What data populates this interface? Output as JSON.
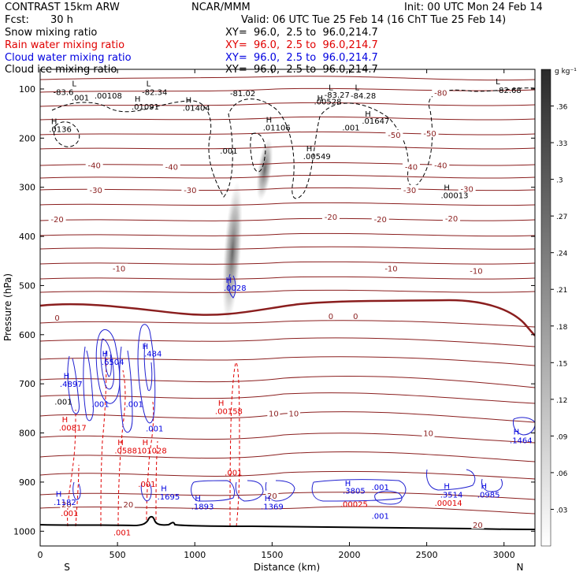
{
  "header": {
    "title": "CONTRAST 15km ARW",
    "center": "NCAR/MMM",
    "init": "Init: 00 UTC Mon 24 Feb 14",
    "fcst_label": "Fcst:",
    "fcst_value": "30 h",
    "valid": "Valid: 06 UTC Tue 25 Feb 14 (16 ChT Tue 25 Feb 14)"
  },
  "fields": [
    {
      "name": "Snow mixing ratio",
      "xy": "XY=  96.0,  2.5 to  96.0,214.7",
      "color": "#000000"
    },
    {
      "name": "Rain water mixing ratio",
      "xy": "XY=  96.0,  2.5 to  96.0,214.7",
      "color": "#e00000"
    },
    {
      "name": "Cloud water mixing ratio",
      "xy": "XY=  96.0,  2.5 to  96.0,214.7",
      "color": "#0000e0"
    },
    {
      "name": "Cloud ice mixing ratio",
      "xy": "XY=  96.0,  2.5 to  96.0,214.7",
      "color": "#000000"
    }
  ],
  "chart_data": {
    "type": "cross-section",
    "xlabel": "Distance (km)",
    "ylabel": "Pressure (hPa)",
    "xlim": [
      0,
      3200
    ],
    "ylim": [
      1030,
      60
    ],
    "xticks": [
      0,
      500,
      1000,
      1500,
      2000,
      2500,
      3000
    ],
    "yticks": [
      100,
      200,
      300,
      400,
      500,
      600,
      700,
      800,
      900,
      1000
    ],
    "end_labels": {
      "left": "S",
      "right": "N"
    },
    "colorbar": {
      "unit": "g kg⁻¹",
      "ticks": [
        ".36",
        ".33",
        ".3",
        ".27",
        ".24",
        ".21",
        ".18",
        ".15",
        ".12",
        ".09",
        ".06",
        ".03"
      ],
      "min": 0.0,
      "max": 0.39
    },
    "temperature_contours": [
      {
        "label": "-80",
        "x": 2590,
        "p": 107
      },
      {
        "label": "-50",
        "x": 2290,
        "p": 193
      },
      {
        "label": "-50",
        "x": 2520,
        "p": 190
      },
      {
        "label": "-40",
        "x": 350,
        "p": 255
      },
      {
        "label": "-40",
        "x": 850,
        "p": 258
      },
      {
        "label": "-40",
        "x": 2400,
        "p": 258
      },
      {
        "label": "-40",
        "x": 2590,
        "p": 255
      },
      {
        "label": "-30",
        "x": 360,
        "p": 305
      },
      {
        "label": "-30",
        "x": 970,
        "p": 305
      },
      {
        "label": "-30",
        "x": 2390,
        "p": 305
      },
      {
        "label": "-30",
        "x": 2760,
        "p": 303
      },
      {
        "label": "-20",
        "x": 110,
        "p": 365
      },
      {
        "label": "-20",
        "x": 1880,
        "p": 360
      },
      {
        "label": "-20",
        "x": 2200,
        "p": 365
      },
      {
        "label": "-20",
        "x": 2660,
        "p": 363
      },
      {
        "label": "-10",
        "x": 510,
        "p": 465
      },
      {
        "label": "-10",
        "x": 2270,
        "p": 465
      },
      {
        "label": "-10",
        "x": 2820,
        "p": 470
      },
      {
        "label": "0",
        "x": 110,
        "p": 565
      },
      {
        "label": "0",
        "x": 1880,
        "p": 562
      },
      {
        "label": "0",
        "x": 2040,
        "p": 562
      },
      {
        "label": "10",
        "x": 1510,
        "p": 760
      },
      {
        "label": "10",
        "x": 1640,
        "p": 760
      },
      {
        "label": "10",
        "x": 2510,
        "p": 800
      },
      {
        "label": "20",
        "x": 170,
        "p": 945
      },
      {
        "label": "20",
        "x": 570,
        "p": 945
      },
      {
        "label": "20",
        "x": 1500,
        "p": 927
      },
      {
        "label": "20",
        "x": 2830,
        "p": 987
      }
    ],
    "annotations": [
      {
        "text": "L",
        "x": 220,
        "p": 88,
        "color": "black"
      },
      {
        "text": "-83.6",
        "x": 150,
        "p": 106,
        "color": "black"
      },
      {
        "text": "L",
        "x": 700,
        "p": 88,
        "color": "black"
      },
      {
        "text": "-82.34",
        "x": 740,
        "p": 106,
        "color": "black"
      },
      {
        "text": "-81.02",
        "x": 1310,
        "p": 108,
        "color": "black"
      },
      {
        "text": "L",
        "x": 1880,
        "p": 96,
        "color": "black"
      },
      {
        "text": "-83.27",
        "x": 1920,
        "p": 111,
        "color": "black"
      },
      {
        "text": "L",
        "x": 2050,
        "p": 96,
        "color": "black"
      },
      {
        "text": "-84.28",
        "x": 2090,
        "p": 113,
        "color": "black"
      },
      {
        "text": "L",
        "x": 2960,
        "p": 84,
        "color": "black"
      },
      {
        "text": "-82.68",
        "x": 3030,
        "p": 102,
        "color": "black"
      },
      {
        "text": ".001",
        "x": 260,
        "p": 117,
        "color": "black"
      },
      {
        "text": ".00108",
        "x": 440,
        "p": 113,
        "color": "black"
      },
      {
        "text": "H",
        "x": 630,
        "p": 119,
        "color": "black"
      },
      {
        "text": ".01091",
        "x": 680,
        "p": 135,
        "color": "black"
      },
      {
        "text": "H",
        "x": 960,
        "p": 122,
        "color": "black"
      },
      {
        "text": ".01404",
        "x": 1010,
        "p": 138,
        "color": "black"
      },
      {
        "text": "H",
        "x": 1810,
        "p": 118,
        "color": "black"
      },
      {
        "text": ".00528",
        "x": 1860,
        "p": 125,
        "color": "black"
      },
      {
        "text": "H",
        "x": 2120,
        "p": 150,
        "color": "black"
      },
      {
        "text": ".01647",
        "x": 2170,
        "p": 164,
        "color": "black"
      },
      {
        "text": "H",
        "x": 90,
        "p": 165,
        "color": "black"
      },
      {
        "text": ".0136",
        "x": 130,
        "p": 181,
        "color": "black"
      },
      {
        "text": "H",
        "x": 1480,
        "p": 162,
        "color": "black"
      },
      {
        "text": ".01106",
        "x": 1530,
        "p": 178,
        "color": "black"
      },
      {
        "text": ".001",
        "x": 2010,
        "p": 178,
        "color": "black"
      },
      {
        "text": ".001",
        "x": 1220,
        "p": 225,
        "color": "black"
      },
      {
        "text": "H",
        "x": 1740,
        "p": 220,
        "color": "black"
      },
      {
        "text": ".00549",
        "x": 1790,
        "p": 236,
        "color": "black"
      },
      {
        "text": "H",
        "x": 2630,
        "p": 300,
        "color": "black"
      },
      {
        "text": ".00013",
        "x": 2680,
        "p": 316,
        "color": "black"
      },
      {
        "text": "H",
        "x": 1220,
        "p": 488,
        "color": "blue"
      },
      {
        "text": ".0028",
        "x": 1260,
        "p": 504,
        "color": "blue"
      },
      {
        "text": "H",
        "x": 420,
        "p": 638,
        "color": "blue"
      },
      {
        "text": ".6504",
        "x": 470,
        "p": 655,
        "color": "blue"
      },
      {
        "text": "H",
        "x": 680,
        "p": 623,
        "color": "blue"
      },
      {
        "text": ".484",
        "x": 730,
        "p": 638,
        "color": "blue"
      },
      {
        "text": "H",
        "x": 170,
        "p": 683,
        "color": "blue"
      },
      {
        "text": ".4897",
        "x": 200,
        "p": 700,
        "color": "blue"
      },
      {
        "text": ".001",
        "x": 150,
        "p": 736,
        "color": "black"
      },
      {
        "text": ".001",
        "x": 390,
        "p": 741,
        "color": "blue"
      },
      {
        "text": ".001",
        "x": 610,
        "p": 741,
        "color": "blue"
      },
      {
        "text": ".001",
        "x": 740,
        "p": 790,
        "color": "blue"
      },
      {
        "text": "H",
        "x": 160,
        "p": 772,
        "color": "red"
      },
      {
        "text": ".00817",
        "x": 210,
        "p": 789,
        "color": "red"
      },
      {
        "text": "H",
        "x": 1170,
        "p": 738,
        "color": "red"
      },
      {
        "text": ".00158",
        "x": 1220,
        "p": 755,
        "color": "red"
      },
      {
        "text": "H",
        "x": 520,
        "p": 818,
        "color": "red"
      },
      {
        "text": ".05881",
        "x": 570,
        "p": 835,
        "color": "red"
      },
      {
        "text": "H",
        "x": 680,
        "p": 818,
        "color": "red"
      },
      {
        "text": ".01028",
        "x": 730,
        "p": 835,
        "color": "red"
      },
      {
        "text": "H",
        "x": 3080,
        "p": 797,
        "color": "blue"
      },
      {
        "text": ".1464",
        "x": 3110,
        "p": 814,
        "color": "blue"
      },
      {
        "text": ".001",
        "x": 1250,
        "p": 880,
        "color": "red"
      },
      {
        "text": ".001",
        "x": 690,
        "p": 903,
        "color": "red"
      },
      {
        "text": "H",
        "x": 800,
        "p": 912,
        "color": "blue"
      },
      {
        "text": ".1695",
        "x": 830,
        "p": 929,
        "color": "blue"
      },
      {
        "text": "H",
        "x": 1020,
        "p": 932,
        "color": "blue"
      },
      {
        "text": ".1893",
        "x": 1050,
        "p": 949,
        "color": "blue"
      },
      {
        "text": "H",
        "x": 1470,
        "p": 932,
        "color": "blue"
      },
      {
        "text": ".1369",
        "x": 1500,
        "p": 949,
        "color": "blue"
      },
      {
        "text": "H",
        "x": 120,
        "p": 923,
        "color": "blue"
      },
      {
        "text": ".1182",
        "x": 160,
        "p": 940,
        "color": "blue"
      },
      {
        "text": ".001",
        "x": 190,
        "p": 963,
        "color": "red"
      },
      {
        "text": "H",
        "x": 1990,
        "p": 902,
        "color": "blue"
      },
      {
        "text": ".3805",
        "x": 2030,
        "p": 917,
        "color": "blue"
      },
      {
        "text": ".001",
        "x": 2200,
        "p": 910,
        "color": "blue"
      },
      {
        "text": ".00025",
        "x": 2030,
        "p": 944,
        "color": "red"
      },
      {
        "text": ".001",
        "x": 2200,
        "p": 968,
        "color": "blue"
      },
      {
        "text": "H",
        "x": 2630,
        "p": 907,
        "color": "blue"
      },
      {
        "text": ".3514",
        "x": 2660,
        "p": 925,
        "color": "blue"
      },
      {
        "text": ".00014",
        "x": 2640,
        "p": 942,
        "color": "red"
      },
      {
        "text": "H",
        "x": 2870,
        "p": 907,
        "color": "blue"
      },
      {
        "text": ".0985",
        "x": 2900,
        "p": 925,
        "color": "blue"
      },
      {
        "text": ".001",
        "x": 530,
        "p": 1002,
        "color": "red"
      }
    ]
  }
}
